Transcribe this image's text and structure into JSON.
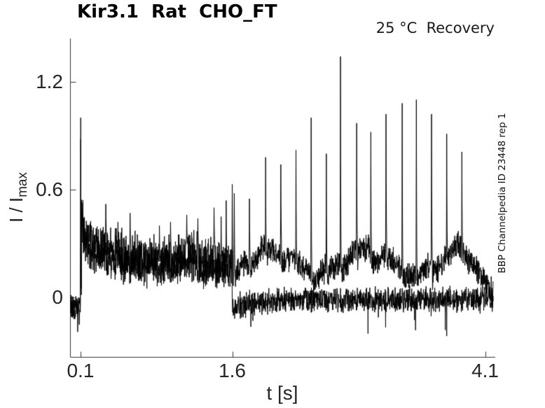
{
  "figure": {
    "title": "Kir3.1  Rat  CHO_FT",
    "annotation": "25 °C  Recovery",
    "watermark": "BBP Channelpedia ID 23448 rep 1",
    "xlabel": "t [s]",
    "ylabel_main": "I / I",
    "ylabel_sub": "max"
  },
  "chart_data": {
    "type": "line",
    "title": "Kir3.1 Rat CHO_FT",
    "subtitle": "25 °C Recovery",
    "xlabel": "t [s]",
    "ylabel": "I / I_max",
    "xlim": [
      0,
      4.2
    ],
    "ylim": [
      -0.331,
      1.44
    ],
    "xticks": [
      0.1,
      1.6,
      4.1
    ],
    "yticks": [
      0,
      0.6,
      1.2
    ],
    "grid": false,
    "legend": false,
    "line_color": "#000000",
    "axis_color": "#333333",
    "annotations": [
      "25 °C Recovery",
      "BBP Channelpedia ID 23448 rep 1"
    ],
    "description": "Two overlaid noisy current sweeps normalized to I/Imax. Baseline near -0.05 before t=0.1 s, sharp activation spike to 1.0 at t=0.1 s, decaying noisy band from ~0.42 to ~0.18 until t=1.6 s, then one sweep drops to ~0 while the other stays near 0.15-0.30 with periodic tall spikes every ~0.15 s (peaks 0.55-1.34) ending near t=3.9 s, tail decaying to ~0 at t=4.18 s.",
    "signal": {
      "sample_dt": 0.002,
      "t_range": [
        0.0,
        4.18
      ],
      "pulse_t": 0.1,
      "split_t": 1.6,
      "sweeps": [
        {
          "name": "sweep-control",
          "seed": 20,
          "pre": {
            "mean": -0.06,
            "amp": 0.05
          },
          "initial_spike": [
            0.102,
            1.0
          ],
          "band": {
            "base": 0.19,
            "decay_amp": 0.14,
            "tau": 0.55,
            "amp": 0.085,
            "bump": [
              1.17,
              0.06,
              0.12
            ]
          },
          "post": {
            "type": "flat",
            "mean": -0.01,
            "amp": 0.05,
            "undershoot": 0.045,
            "down_spike_prob": 0.006
          },
          "spikes": "small_spikes"
        },
        {
          "name": "sweep-recovery",
          "seed": 77,
          "pre": {
            "mean": -0.03,
            "amp": 0.04
          },
          "initial_spike": [
            0.103,
            0.88
          ],
          "band": {
            "base": 0.13,
            "decay_amp": 0.14,
            "tau": 0.5,
            "amp": 0.075,
            "bump": [
              1.17,
              0.05,
              0.12
            ]
          },
          "post": {
            "type": "wavy",
            "mean": 0.21,
            "amp": 0.055,
            "wave": [
              0.065,
              0.95,
              -0.9
            ],
            "ripple": [
              0.025,
              0.31
            ],
            "fade_t": 3.9,
            "fade_dur": 0.33
          },
          "spikes": "tall_spikes"
        }
      ],
      "small_spikes": [
        [
          0.072,
          -0.19
        ],
        [
          0.088,
          -0.15
        ],
        [
          0.35,
          0.52
        ],
        [
          0.47,
          0.42
        ],
        [
          0.59,
          0.47
        ],
        [
          0.88,
          0.4
        ],
        [
          0.99,
          0.42
        ],
        [
          1.15,
          0.46
        ],
        [
          1.26,
          0.44
        ],
        [
          1.42,
          0.5
        ],
        [
          1.49,
          0.45
        ],
        [
          1.54,
          0.54
        ]
      ],
      "tall_spikes": [
        [
          1.6,
          0.63
        ],
        [
          1.62,
          0.58
        ],
        [
          1.77,
          0.55
        ],
        [
          1.93,
          0.78
        ],
        [
          2.08,
          0.74
        ],
        [
          2.23,
          0.82
        ],
        [
          2.38,
          1.0
        ],
        [
          2.53,
          0.8
        ],
        [
          2.67,
          1.34
        ],
        [
          2.83,
          0.97
        ],
        [
          2.97,
          0.92
        ],
        [
          3.12,
          1.02
        ],
        [
          3.28,
          1.08
        ],
        [
          3.42,
          1.1
        ],
        [
          3.57,
          1.02
        ],
        [
          3.72,
          0.91
        ],
        [
          3.87,
          0.81
        ]
      ]
    }
  }
}
